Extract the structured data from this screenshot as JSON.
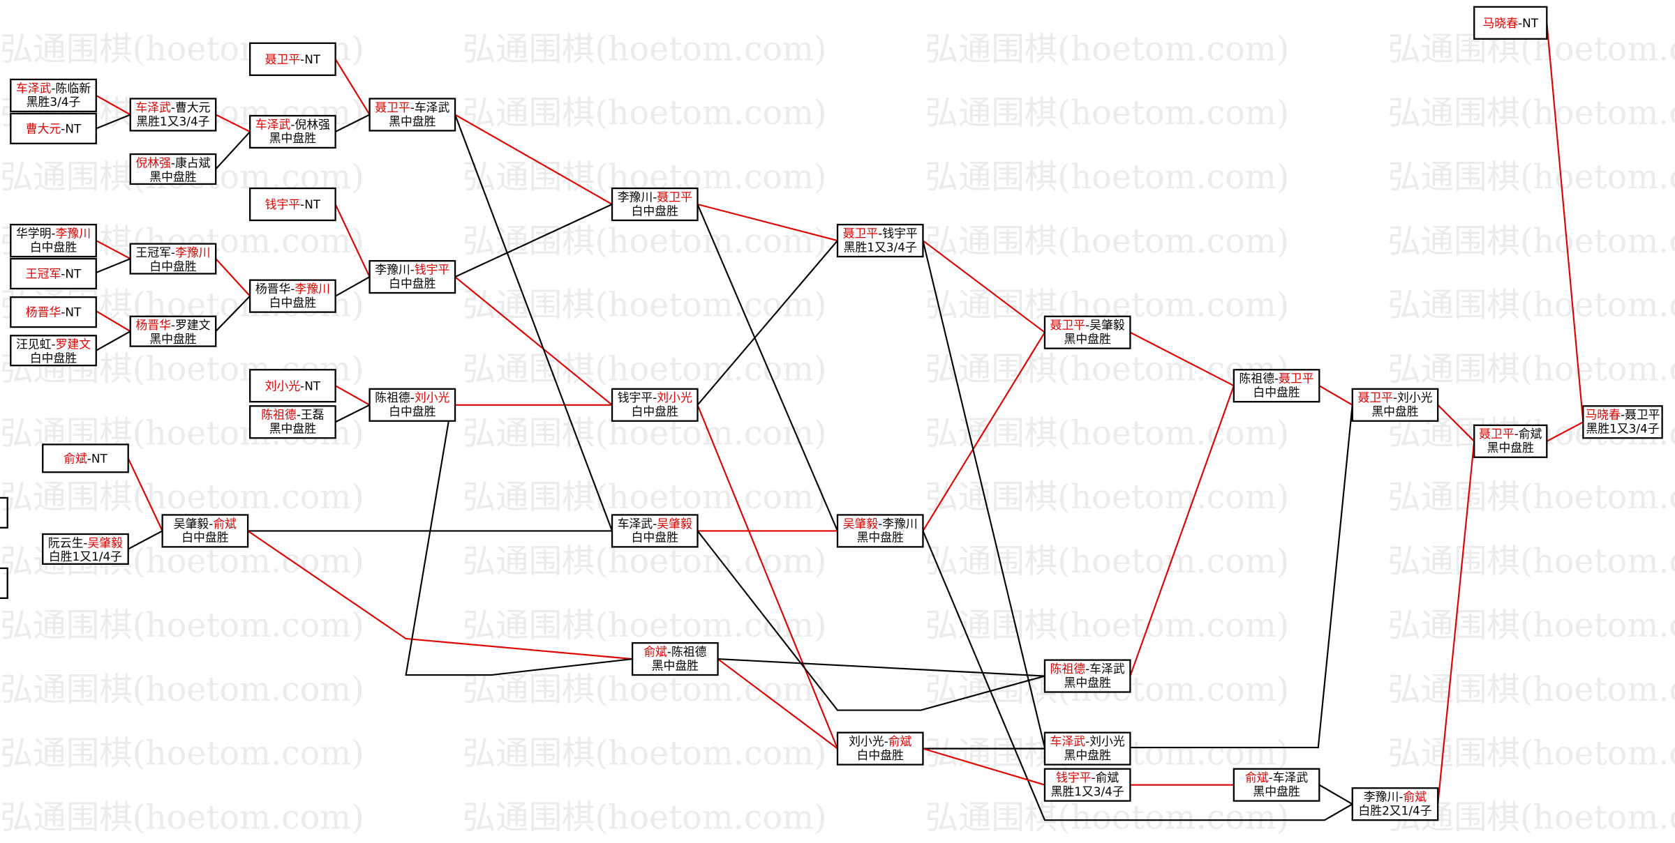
{
  "watermark": "弘通围棋(hoetom.com)",
  "nodes": [
    {
      "text": [
        "车泽武",
        "-陈临新"
      ],
      "red": 0,
      "result": "黑胜3/4子"
    },
    {
      "text": [
        "曹大元",
        "-NT"
      ],
      "red": 0
    },
    {
      "text": [
        "华学明-",
        "李豫川"
      ],
      "red": 1,
      "result": "白中盘胜"
    },
    {
      "text": [
        "王冠军",
        "-NT"
      ],
      "red": 0
    },
    {
      "text": [
        "杨晋华",
        "-NT"
      ],
      "red": 0
    },
    {
      "text": [
        "汪见虹-",
        "罗建文"
      ],
      "red": 1,
      "result": "白中盘胜"
    },
    {
      "text": [
        "车泽武",
        "-曹大元"
      ],
      "red": 0,
      "result": "黑胜1又3/4子"
    },
    {
      "text": [
        "倪林强",
        "-康占斌"
      ],
      "red": 0,
      "result": "黑中盘胜"
    },
    {
      "text": [
        "王冠军-",
        "李豫川"
      ],
      "red": 1,
      "result": "白中盘胜"
    },
    {
      "text": [
        "杨晋华",
        "-罗建文"
      ],
      "red": 0,
      "result": "黑中盘胜"
    },
    {
      "text": [
        "俞斌",
        "-NT"
      ],
      "red": 0
    },
    {
      "text": [
        "阮云生-",
        "吴肇毅"
      ],
      "red": 1,
      "result": "白胜1又1/4子"
    },
    {
      "text": [
        "聂卫平",
        "-NT"
      ],
      "red": 0
    },
    {
      "text": [
        "车泽武",
        "-倪林强"
      ],
      "red": 0,
      "result": "黑中盘胜"
    },
    {
      "text": [
        "钱宇平",
        "-NT"
      ],
      "red": 0
    },
    {
      "text": [
        "杨晋华-",
        "李豫川"
      ],
      "red": 1,
      "result": "白中盘胜"
    },
    {
      "text": [
        "刘小光",
        "-NT"
      ],
      "red": 0
    },
    {
      "text": [
        "陈祖德",
        "-王磊"
      ],
      "red": 0,
      "result": "黑中盘胜"
    },
    {
      "text": [
        "吴肇毅-",
        "俞斌"
      ],
      "red": 1,
      "result": "白中盘胜"
    },
    {
      "text": [
        "聂卫平",
        "-车泽武"
      ],
      "red": 0,
      "result": "黑中盘胜"
    },
    {
      "text": [
        "李豫川-",
        "钱宇平"
      ],
      "red": 1,
      "result": "白中盘胜"
    },
    {
      "text": [
        "陈祖德-",
        "刘小光"
      ],
      "red": 1,
      "result": "白中盘胜"
    },
    {
      "text": [
        "李豫川-",
        "聂卫平"
      ],
      "red": 1,
      "result": "白中盘胜"
    },
    {
      "text": [
        "钱宇平-",
        "刘小光"
      ],
      "red": 1,
      "result": "白中盘胜"
    },
    {
      "text": [
        "车泽武-",
        "吴肇毅"
      ],
      "red": 1,
      "result": "白中盘胜"
    },
    {
      "text": [
        "俞斌",
        "-陈祖德"
      ],
      "red": 0,
      "result": "黑中盘胜"
    },
    {
      "text": [
        "聂卫平",
        "-钱宇平"
      ],
      "red": 0,
      "result": "黑胜1又3/4子"
    },
    {
      "text": [
        "吴肇毅",
        "-李豫川"
      ],
      "red": 0,
      "result": "黑中盘胜"
    },
    {
      "text": [
        "刘小光-",
        "俞斌"
      ],
      "red": 1,
      "result": "白中盘胜"
    },
    {
      "text": [
        "聂卫平",
        "-吴肇毅"
      ],
      "red": 0,
      "result": "黑中盘胜"
    },
    {
      "text": [
        "陈祖德",
        "-车泽武"
      ],
      "red": 0,
      "result": "黑中盘胜"
    },
    {
      "text": [
        "车泽武",
        "-刘小光"
      ],
      "red": 0,
      "result": "黑中盘胜"
    },
    {
      "text": [
        "钱宇平",
        "-俞斌"
      ],
      "red": 0,
      "result": "黑胜1又3/4子"
    },
    {
      "text": [
        "陈祖德-",
        "聂卫平"
      ],
      "red": 1,
      "result": "白中盘胜"
    },
    {
      "text": [
        "俞斌",
        "-车泽武"
      ],
      "red": 0,
      "result": "黑中盘胜"
    },
    {
      "text": [
        "聂卫平",
        "-刘小光"
      ],
      "red": 0,
      "result": "黑中盘胜"
    },
    {
      "text": [
        "李豫川-",
        "俞斌"
      ],
      "red": 1,
      "result": "白胜2又1/4子"
    },
    {
      "text": [
        "聂卫平",
        "-俞斌"
      ],
      "red": 0,
      "result": "黑中盘胜"
    },
    {
      "text": [
        "马晓春",
        "-NT"
      ],
      "red": 0
    },
    {
      "text": [
        "马晓春",
        "-聂卫平"
      ],
      "red": 0,
      "result": "黑胜1又3/4子"
    }
  ]
}
